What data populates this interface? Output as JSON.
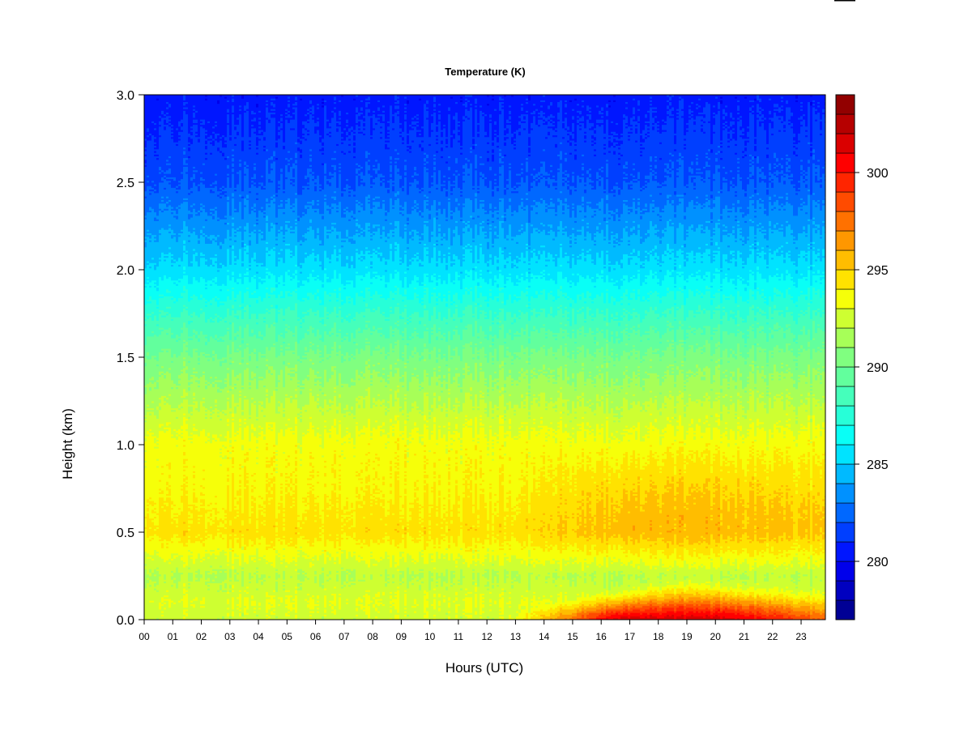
{
  "chart_data": {
    "type": "heatmap",
    "title": "Temperature (K)",
    "xlabel": "Hours (UTC)",
    "ylabel": "Height (km)",
    "x_ticks": [
      "00",
      "01",
      "02",
      "03",
      "04",
      "05",
      "06",
      "07",
      "08",
      "09",
      "10",
      "11",
      "12",
      "13",
      "14",
      "15",
      "16",
      "17",
      "18",
      "19",
      "20",
      "21",
      "22",
      "23"
    ],
    "xlim": [
      0,
      23.85
    ],
    "y_ticks": [
      "0.0",
      "0.5",
      "1.0",
      "1.5",
      "2.0",
      "2.5",
      "3.0"
    ],
    "ylim": [
      0,
      3.0
    ],
    "colorbar": {
      "ticks": [
        "280",
        "285",
        "290",
        "295",
        "300"
      ],
      "range": [
        277,
        304
      ],
      "levels": 27
    },
    "profiles": {
      "heights_km": [
        0.0,
        0.1,
        0.25,
        0.5,
        0.75,
        1.0,
        1.5,
        1.75,
        2.0,
        2.5,
        3.0
      ],
      "night_K": [
        292.5,
        293.0,
        292.0,
        294.5,
        293.8,
        293.5,
        290.3,
        288.0,
        285.5,
        282.0,
        280.5
      ],
      "afternoon_K": [
        301.5,
        299.0,
        295.5,
        295.0,
        294.5,
        293.5,
        290.3,
        288.0,
        285.5,
        282.0,
        280.5
      ]
    },
    "grid": false
  }
}
